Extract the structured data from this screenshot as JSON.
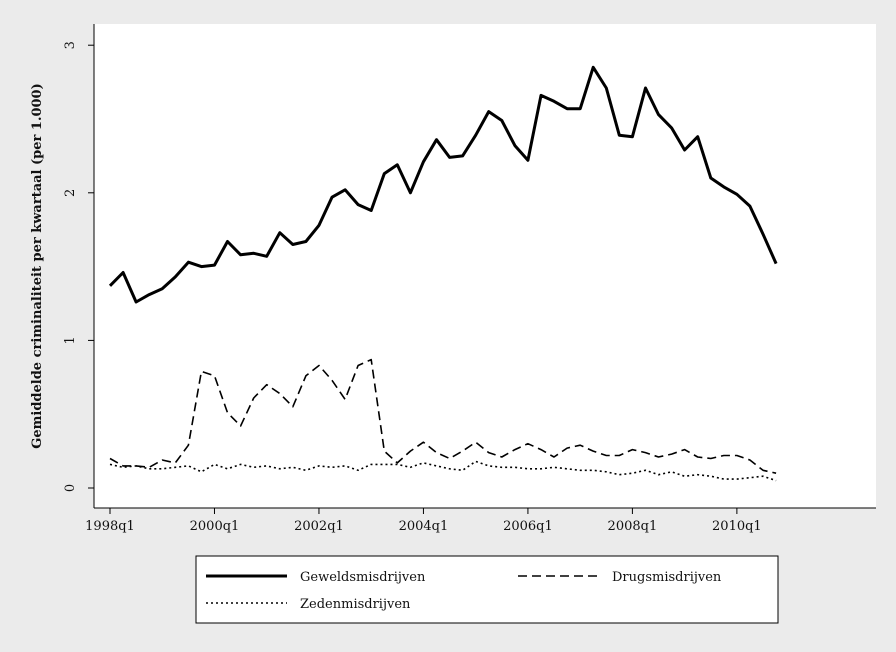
{
  "chart_data": {
    "type": "line",
    "title": "",
    "xlabel": "",
    "ylabel": "Gemiddelde criminaliteit per kwartaal (per 1.000)",
    "ylim": [
      0,
      3
    ],
    "yticks": [
      "0",
      "1",
      "2",
      "3"
    ],
    "grid": false,
    "legend_position": "bottom",
    "x_tick_labels": [
      "1998q1",
      "2000q1",
      "2002q1",
      "2004q1",
      "2006q1",
      "2008q1",
      "2010q1"
    ],
    "x": [
      "1998q1",
      "1998q2",
      "1998q3",
      "1998q4",
      "1999q1",
      "1999q2",
      "1999q3",
      "1999q4",
      "2000q1",
      "2000q2",
      "2000q3",
      "2000q4",
      "2001q1",
      "2001q2",
      "2001q3",
      "2001q4",
      "2002q1",
      "2002q2",
      "2002q3",
      "2002q4",
      "2003q1",
      "2003q2",
      "2003q3",
      "2003q4",
      "2004q1",
      "2004q2",
      "2004q3",
      "2004q4",
      "2005q1",
      "2005q2",
      "2005q3",
      "2005q4",
      "2006q1",
      "2006q2",
      "2006q3",
      "2006q4",
      "2007q1",
      "2007q2",
      "2007q3",
      "2007q4",
      "2008q1",
      "2008q2",
      "2008q3",
      "2008q4",
      "2009q1",
      "2009q2",
      "2009q3",
      "2009q4",
      "2010q1",
      "2010q2",
      "2010q3",
      "2010q4"
    ],
    "series": [
      {
        "name": "Geweldsmisdrijven",
        "style": "solid",
        "values": [
          1.37,
          1.46,
          1.26,
          1.31,
          1.35,
          1.43,
          1.53,
          1.5,
          1.51,
          1.67,
          1.58,
          1.59,
          1.57,
          1.73,
          1.65,
          1.67,
          1.78,
          1.97,
          2.02,
          1.92,
          1.88,
          2.13,
          2.19,
          2.0,
          2.21,
          2.36,
          2.24,
          2.25,
          2.39,
          2.55,
          2.49,
          2.32,
          2.22,
          2.66,
          2.62,
          2.57,
          2.57,
          2.85,
          2.71,
          2.39,
          2.38,
          2.71,
          2.53,
          2.44,
          2.29,
          2.38,
          2.1,
          2.04,
          1.99,
          1.91,
          1.72,
          1.52
        ]
      },
      {
        "name": "Drugsmisdrijven",
        "style": "dashed",
        "values": [
          0.2,
          0.15,
          0.15,
          0.14,
          0.19,
          0.17,
          0.29,
          0.79,
          0.76,
          0.51,
          0.42,
          0.61,
          0.7,
          0.64,
          0.55,
          0.76,
          0.83,
          0.73,
          0.6,
          0.83,
          0.87,
          0.25,
          0.17,
          0.25,
          0.31,
          0.24,
          0.2,
          0.25,
          0.31,
          0.24,
          0.21,
          0.26,
          0.3,
          0.26,
          0.21,
          0.27,
          0.29,
          0.25,
          0.22,
          0.22,
          0.26,
          0.24,
          0.21,
          0.23,
          0.26,
          0.21,
          0.2,
          0.22,
          0.22,
          0.19,
          0.12,
          0.1
        ]
      },
      {
        "name": "Zedenmisdrijven",
        "style": "dotted",
        "values": [
          0.16,
          0.14,
          0.15,
          0.13,
          0.13,
          0.14,
          0.15,
          0.11,
          0.16,
          0.13,
          0.16,
          0.14,
          0.15,
          0.13,
          0.14,
          0.12,
          0.15,
          0.14,
          0.15,
          0.12,
          0.16,
          0.16,
          0.16,
          0.14,
          0.17,
          0.15,
          0.13,
          0.12,
          0.18,
          0.15,
          0.14,
          0.14,
          0.13,
          0.13,
          0.14,
          0.13,
          0.12,
          0.12,
          0.11,
          0.09,
          0.1,
          0.12,
          0.09,
          0.11,
          0.08,
          0.09,
          0.08,
          0.06,
          0.06,
          0.07,
          0.08,
          0.05
        ]
      }
    ]
  },
  "colors": {
    "background": "#ebebeb",
    "plot_area": "#ffffff",
    "line": "#000000"
  }
}
